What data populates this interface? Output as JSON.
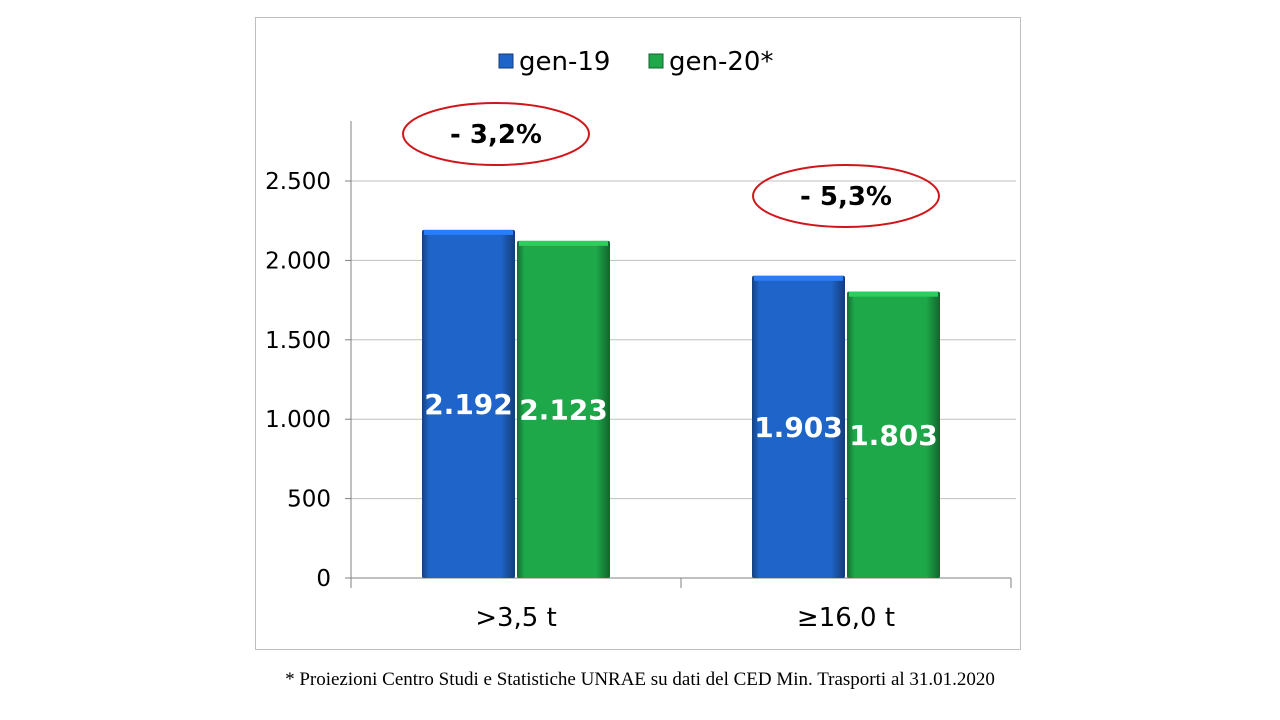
{
  "chart_data": {
    "type": "bar",
    "categories": [
      ">3,5 t",
      "≥16,0 t"
    ],
    "series": [
      {
        "name": "gen-19",
        "values": [
          2192,
          1903
        ],
        "labels": [
          "2.192",
          "1.903"
        ],
        "color": "#1f64c8"
      },
      {
        "name": "gen-20*",
        "values": [
          2123,
          1803
        ],
        "labels": [
          "2.123",
          "1.803"
        ],
        "color": "#1ea84a"
      }
    ],
    "ylim": [
      0,
      2500
    ],
    "yticks": [
      0,
      500,
      1000,
      1500,
      2000,
      2500
    ],
    "ytick_labels": [
      "0",
      "500",
      "1.000",
      "1.500",
      "2.000",
      "2.500"
    ],
    "gridlines": true,
    "legend_position": "top-center",
    "annotations": [
      "- 3,2%",
      "- 5,3%"
    ],
    "annotation_color": "#d0161a"
  },
  "footnote": "* Proiezioni Centro Studi e Statistiche UNRAE su dati del CED Min. Trasporti al 31.01.2020"
}
